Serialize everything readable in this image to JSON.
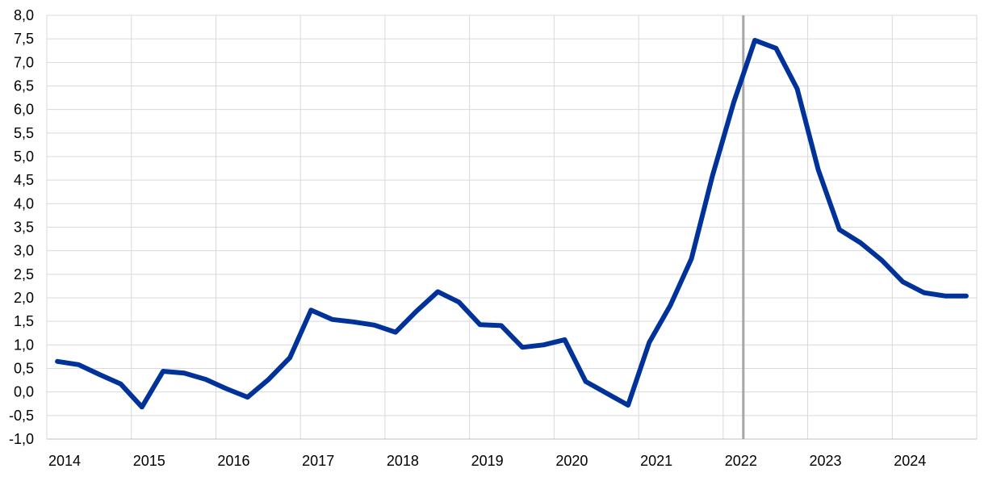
{
  "chart_data": {
    "type": "line",
    "title": "",
    "xlabel": "",
    "ylabel": "",
    "ylim": [
      -1,
      8
    ],
    "y_step": 0.5,
    "y_tick_labels": [
      "-1,0",
      "-0,5",
      "0,0",
      "0,5",
      "1,0",
      "1,5",
      "2,0",
      "2,5",
      "3,0",
      "3,5",
      "4,0",
      "4,5",
      "5,0",
      "5,5",
      "6,0",
      "6,5",
      "7,0",
      "7,5",
      "8,0"
    ],
    "x_tick_labels": [
      "2014",
      "2015",
      "2016",
      "2017",
      "2018",
      "2019",
      "2020",
      "2021",
      "2022",
      "2023",
      "2024"
    ],
    "x_frequency": "quarterly",
    "grid": true,
    "vertical_marker": "2022 Q1/Q2",
    "colors": {
      "series": "#003299",
      "marker": "#a6a6a6",
      "grid": "#d9d9d9"
    },
    "series": [
      {
        "x": [
          "2014Q1",
          "2014Q2",
          "2014Q3",
          "2014Q4",
          "2015Q1",
          "2015Q2",
          "2015Q3",
          "2015Q4",
          "2016Q1",
          "2016Q2",
          "2016Q3",
          "2016Q4",
          "2017Q1",
          "2017Q2",
          "2017Q3",
          "2017Q4",
          "2018Q1",
          "2018Q2",
          "2018Q3",
          "2018Q4",
          "2019Q1",
          "2019Q2",
          "2019Q3",
          "2019Q4",
          "2020Q1",
          "2020Q2",
          "2020Q3",
          "2020Q4",
          "2021Q1",
          "2021Q2",
          "2021Q3",
          "2021Q4",
          "2022Q1",
          "2022Q2",
          "2022Q3",
          "2022Q4",
          "2023Q1",
          "2023Q2",
          "2023Q3",
          "2023Q4",
          "2024Q1",
          "2024Q2",
          "2024Q3",
          "2024Q4"
        ],
        "values": [
          0.65,
          0.58,
          0.37,
          0.17,
          -0.32,
          0.44,
          0.4,
          0.27,
          0.07,
          -0.11,
          0.27,
          0.73,
          1.74,
          1.54,
          1.49,
          1.42,
          1.27,
          1.72,
          2.13,
          1.91,
          1.43,
          1.41,
          0.95,
          1.0,
          1.11,
          0.22,
          -0.03,
          -0.28,
          1.05,
          1.84,
          2.83,
          4.6,
          6.15,
          7.47,
          7.3,
          6.44,
          4.72,
          3.45,
          3.17,
          2.8,
          2.34,
          2.11,
          2.04,
          2.04
        ]
      }
    ]
  }
}
